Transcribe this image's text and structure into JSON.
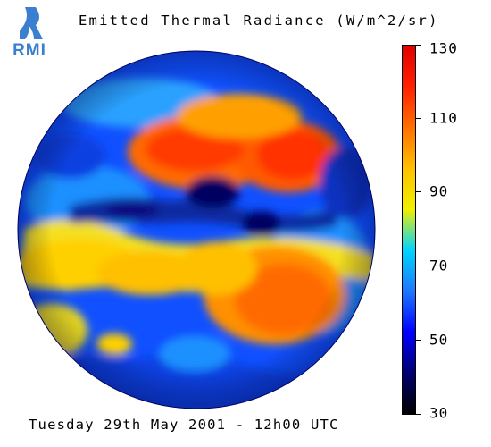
{
  "logo": {
    "text": "RMI",
    "icon": "rmi-logo-icon"
  },
  "title": "Emitted Thermal Radiance (W/m^2/sr)",
  "footer": "Tuesday 29th May 2001 - 12h00 UTC",
  "colorbar": {
    "min": 30,
    "max": 130,
    "ticks": [
      "130",
      "110",
      "90",
      "70",
      "50",
      "30"
    ],
    "colors": [
      "#000000",
      "#000070",
      "#0000ff",
      "#1e78ff",
      "#00d4ff",
      "#f0f000",
      "#ffc000",
      "#ff7000",
      "#ff2000",
      "#e00000"
    ]
  },
  "map": {
    "type": "satellite-full-disk",
    "colormap": "dark-blue to red"
  }
}
